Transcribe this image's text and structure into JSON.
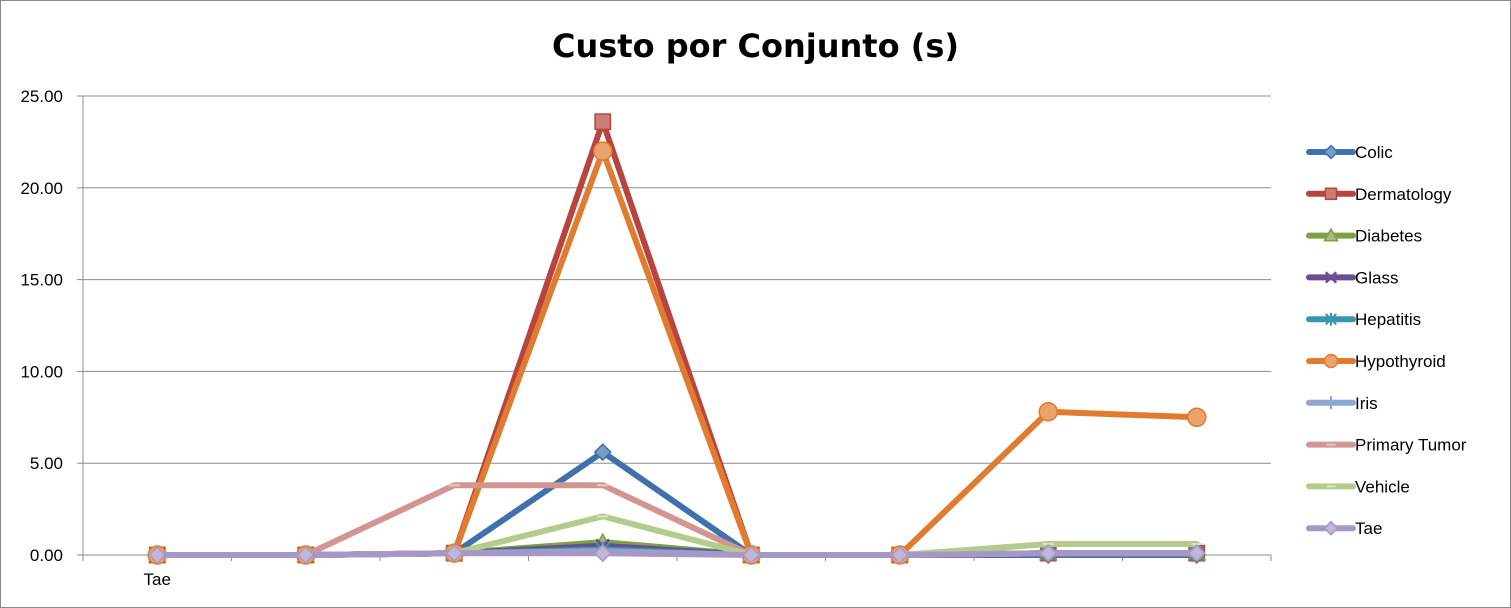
{
  "chart_data": {
    "type": "line",
    "title": "Custo por Conjunto (s)",
    "xlabel": "",
    "ylabel": "",
    "ylim": [
      0,
      25
    ],
    "y_ticks": [
      "0.00",
      "5.00",
      "10.00",
      "15.00",
      "20.00",
      "25.00"
    ],
    "categories": [
      "Tae",
      "",
      "",
      "",
      "",
      "",
      "",
      ""
    ],
    "grid": true,
    "legend_position": "right",
    "series": [
      {
        "name": "Colic",
        "color": "#4071ad",
        "marker": "diamond",
        "values": [
          0,
          0,
          0.1,
          5.6,
          0,
          0,
          0,
          0
        ]
      },
      {
        "name": "Dermatology",
        "color": "#b84440",
        "marker": "square",
        "values": [
          0,
          0,
          0.1,
          23.6,
          0,
          0,
          0.1,
          0.1
        ]
      },
      {
        "name": "Diabetes",
        "color": "#7fa043",
        "marker": "triangle",
        "values": [
          0,
          0,
          0.1,
          0.7,
          0,
          0,
          0.1,
          0.1
        ]
      },
      {
        "name": "Glass",
        "color": "#6b4e92",
        "marker": "x",
        "values": [
          0,
          0,
          0.1,
          0.5,
          0,
          0,
          0.1,
          0.1
        ]
      },
      {
        "name": "Hepatitis",
        "color": "#3b95ad",
        "marker": "star",
        "values": [
          0,
          0,
          0.1,
          0.3,
          0,
          0,
          0.1,
          0.1
        ]
      },
      {
        "name": "Hypothyroid",
        "color": "#e07b2f",
        "marker": "circle",
        "values": [
          0,
          0,
          0.1,
          22.0,
          0,
          0,
          7.8,
          7.5
        ]
      },
      {
        "name": "Iris",
        "color": "#8ea7d1",
        "marker": "plus",
        "values": [
          0,
          0,
          0.1,
          0.2,
          0,
          0,
          0.1,
          0.1
        ]
      },
      {
        "name": "Primary Tumor",
        "color": "#d39592",
        "marker": "dash",
        "values": [
          0,
          0,
          3.8,
          3.8,
          0,
          0,
          0.1,
          0.1
        ]
      },
      {
        "name": "Vehicle",
        "color": "#b3cc8c",
        "marker": "dash",
        "values": [
          0,
          0,
          0.1,
          2.1,
          0,
          0,
          0.6,
          0.6
        ]
      },
      {
        "name": "Tae",
        "color": "#a797c6",
        "marker": "diamond",
        "values": [
          0,
          0,
          0.1,
          0.1,
          0,
          0,
          0.1,
          0.1
        ]
      }
    ]
  }
}
